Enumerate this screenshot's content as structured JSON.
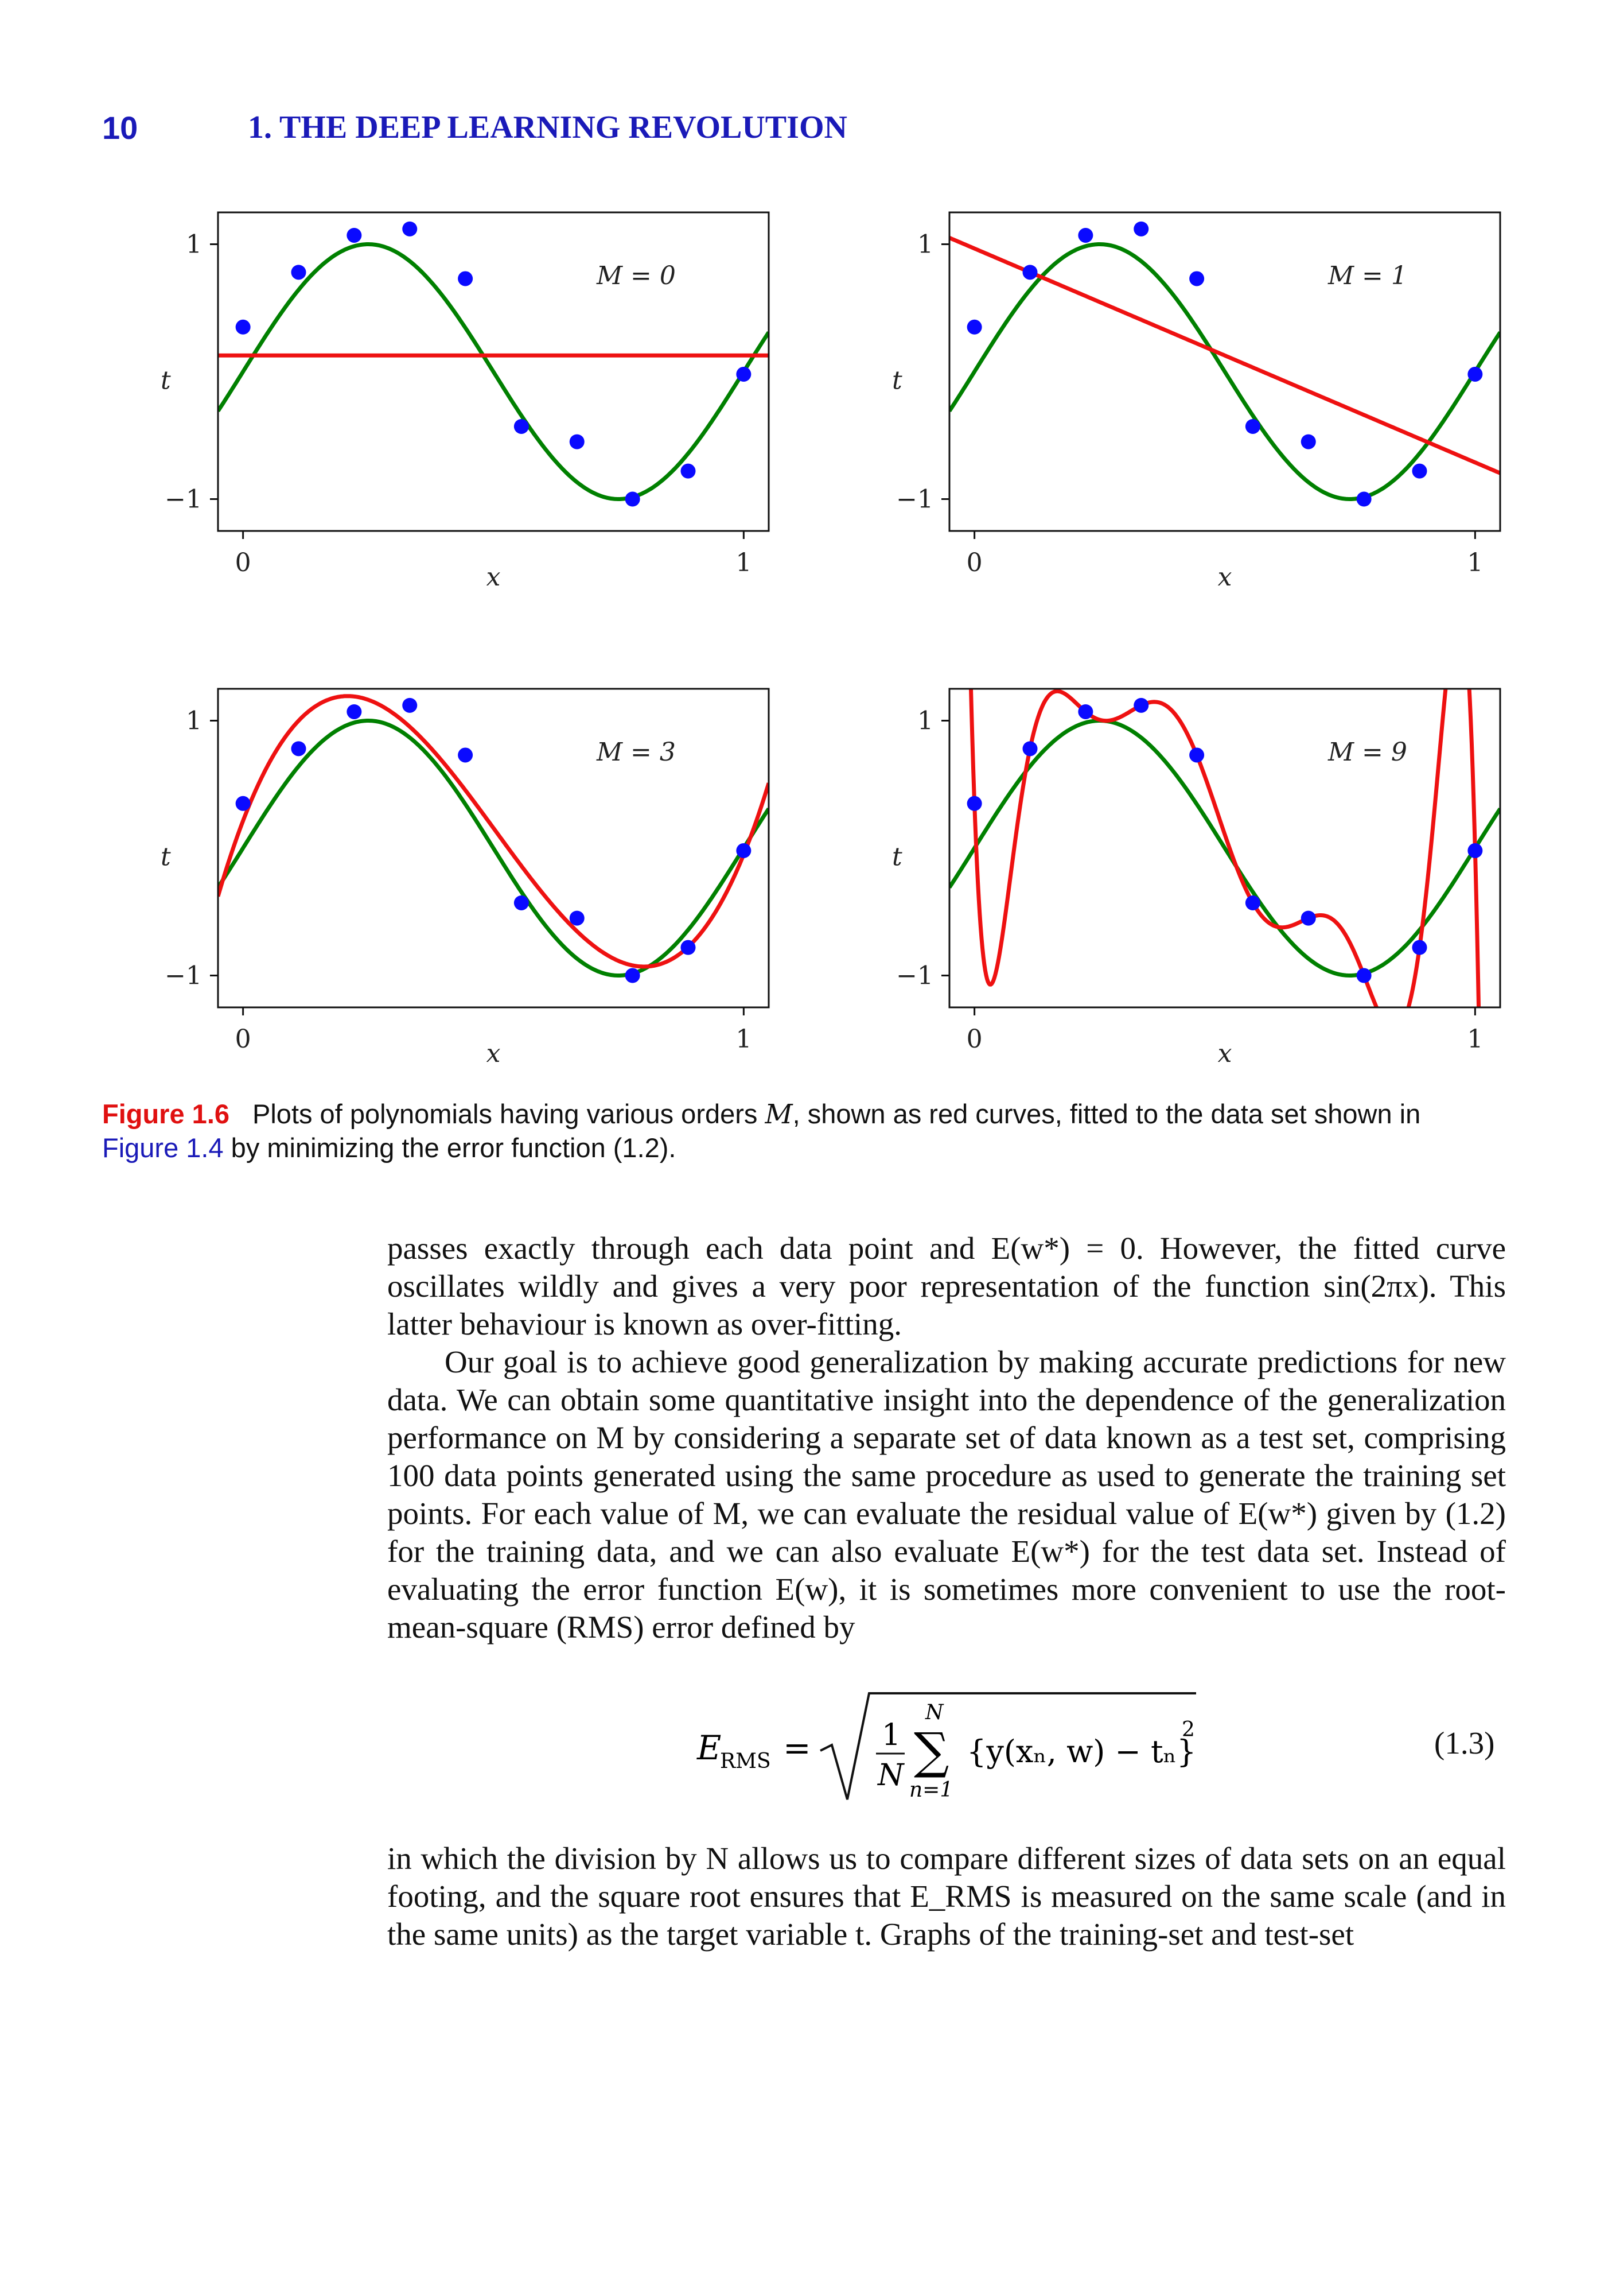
{
  "header": {
    "page_number": "10",
    "chapter_title": "1. THE DEEP LEARNING REVOLUTION"
  },
  "chart_data": [
    {
      "type": "line",
      "annotation": "M = 0",
      "xlabel": "x",
      "ylabel": "t",
      "xticks": [
        "0",
        "1"
      ],
      "yticks": [
        "1",
        "−1"
      ],
      "xlim": [
        -0.05,
        1.05
      ],
      "ylim": [
        -1.25,
        1.25
      ],
      "points": {
        "x": [
          0,
          0.111,
          0.222,
          0.333,
          0.444,
          0.556,
          0.667,
          0.778,
          0.889,
          1.0
        ],
        "y": [
          0.35,
          0.78,
          1.07,
          1.12,
          0.73,
          -0.43,
          -0.55,
          -1.0,
          -0.78,
          -0.02
        ]
      },
      "series": [
        {
          "color": "#008000",
          "function": "sin(2πx)"
        },
        {
          "color": "#ee1111",
          "fit_order": 0
        }
      ]
    },
    {
      "type": "line",
      "annotation": "M = 1",
      "xlabel": "x",
      "ylabel": "t",
      "xticks": [
        "0",
        "1"
      ],
      "yticks": [
        "1",
        "−1"
      ],
      "xlim": [
        -0.05,
        1.05
      ],
      "ylim": [
        -1.25,
        1.25
      ],
      "points": {
        "x": [
          0,
          0.111,
          0.222,
          0.333,
          0.444,
          0.556,
          0.667,
          0.778,
          0.889,
          1.0
        ],
        "y": [
          0.35,
          0.78,
          1.07,
          1.12,
          0.73,
          -0.43,
          -0.55,
          -1.0,
          -0.78,
          -0.02
        ]
      },
      "series": [
        {
          "color": "#008000",
          "function": "sin(2πx)"
        },
        {
          "color": "#ee1111",
          "fit_order": 1
        }
      ]
    },
    {
      "type": "line",
      "annotation": "M = 3",
      "xlabel": "x",
      "ylabel": "t",
      "xticks": [
        "0",
        "1"
      ],
      "yticks": [
        "1",
        "−1"
      ],
      "xlim": [
        -0.05,
        1.05
      ],
      "ylim": [
        -1.25,
        1.25
      ],
      "points": {
        "x": [
          0,
          0.111,
          0.222,
          0.333,
          0.444,
          0.556,
          0.667,
          0.778,
          0.889,
          1.0
        ],
        "y": [
          0.35,
          0.78,
          1.07,
          1.12,
          0.73,
          -0.43,
          -0.55,
          -1.0,
          -0.78,
          -0.02
        ]
      },
      "series": [
        {
          "color": "#008000",
          "function": "sin(2πx)"
        },
        {
          "color": "#ee1111",
          "fit_order": 3
        }
      ]
    },
    {
      "type": "line",
      "annotation": "M = 9",
      "xlabel": "x",
      "ylabel": "t",
      "xticks": [
        "0",
        "1"
      ],
      "yticks": [
        "1",
        "−1"
      ],
      "xlim": [
        -0.05,
        1.05
      ],
      "ylim": [
        -1.25,
        1.25
      ],
      "points": {
        "x": [
          0,
          0.111,
          0.222,
          0.333,
          0.444,
          0.556,
          0.667,
          0.778,
          0.889,
          1.0
        ],
        "y": [
          0.35,
          0.78,
          1.07,
          1.12,
          0.73,
          -0.43,
          -0.55,
          -1.0,
          -0.78,
          -0.02
        ]
      },
      "series": [
        {
          "color": "#008000",
          "function": "sin(2πx)"
        },
        {
          "color": "#ee1111",
          "fit_order": 9
        }
      ]
    }
  ],
  "caption": {
    "label": "Figure 1.6",
    "text_before_symbol": "Plots of polynomials having various orders ",
    "symbol": "M",
    "text_after_symbol": ", shown as red curves, fitted to the data set shown in",
    "ref": "Figure 1.4",
    "text_end": " by minimizing the error function (1.2)."
  },
  "body": {
    "para1": "passes exactly through each data point and E(w*) = 0. However, the fitted curve oscillates wildly and gives a very poor representation of the function sin(2πx). This latter behaviour is known as over-fitting.",
    "para2": "Our goal is to achieve good generalization by making accurate predictions for new data. We can obtain some quantitative insight into the dependence of the generalization performance on M by considering a separate set of data known as a test set, comprising 100 data points generated using the same procedure as used to generate the training set points. For each value of M, we can evaluate the residual value of E(w*) given by (1.2) for the training data, and we can also evaluate E(w*) for the test data set. Instead of evaluating the error function E(w), it is sometimes more convenient to use the root-mean-square (RMS) error defined by",
    "equation": {
      "lhs": "E",
      "lhs_sub": "RMS",
      "equals": "=",
      "frac_num": "1",
      "frac_den": "N",
      "sum_top": "N",
      "sum_bottom": "n=1",
      "summand": "{y(xₙ, w) − tₙ}",
      "power": "2",
      "number": "(1.3)"
    },
    "para3": "in which the division by N allows us to compare different sizes of data sets on an equal footing, and the square root ensures that E_RMS is measured on the same scale (and in the same units) as the target variable t. Graphs of the training-set and test-set"
  }
}
